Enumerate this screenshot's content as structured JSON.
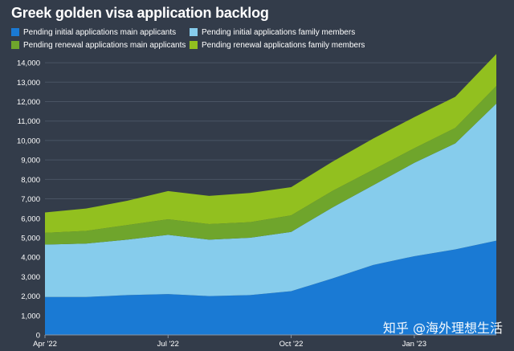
{
  "chart_data": {
    "type": "area",
    "stacked": true,
    "title": "Greek golden visa application backlog",
    "xlabel": "",
    "ylabel": "",
    "x": [
      "Apr '22",
      "May '22",
      "Jun '22",
      "Jul '22",
      "Aug '22",
      "Sep '22",
      "Oct '22",
      "Nov '22",
      "Dec '22",
      "Jan '23",
      "Feb '23",
      "Mar '23"
    ],
    "x_tick_labels": [
      "Apr '22",
      "Jul '22",
      "Oct '22",
      "Jan '23"
    ],
    "ylim": [
      0,
      14500
    ],
    "y_ticks": [
      0,
      1000,
      2000,
      3000,
      4000,
      5000,
      6000,
      7000,
      8000,
      9000,
      10000,
      11000,
      12000,
      13000,
      14000
    ],
    "y_tick_labels": [
      "0",
      "1,000",
      "2,000",
      "3,000",
      "4,000",
      "5,000",
      "6,000",
      "7,000",
      "8,000",
      "9,000",
      "10,000",
      "11,000",
      "12,000",
      "13,000",
      "14,000"
    ],
    "grid": true,
    "legend_position": "top",
    "series": [
      {
        "name": "Pending initial applications main applicants",
        "color": "#1a7ad4",
        "values": [
          1950,
          1950,
          2050,
          2100,
          2000,
          2050,
          2250,
          2900,
          3600,
          4050,
          4400,
          4850
        ]
      },
      {
        "name": "Pending initial applications family members",
        "color": "#86ccec",
        "values": [
          2700,
          2750,
          2850,
          3050,
          2900,
          2950,
          3050,
          3650,
          4100,
          4800,
          5450,
          7050
        ]
      },
      {
        "name": "Pending renewal applications main applicants",
        "color": "#6fa52c",
        "values": [
          600,
          650,
          750,
          800,
          800,
          800,
          850,
          850,
          800,
          750,
          800,
          900
        ]
      },
      {
        "name": "Pending renewal applications family members",
        "color": "#92c01f",
        "values": [
          1050,
          1150,
          1250,
          1450,
          1450,
          1500,
          1450,
          1500,
          1600,
          1600,
          1600,
          1650
        ]
      }
    ]
  },
  "watermark": "知乎 @海外理想生活"
}
